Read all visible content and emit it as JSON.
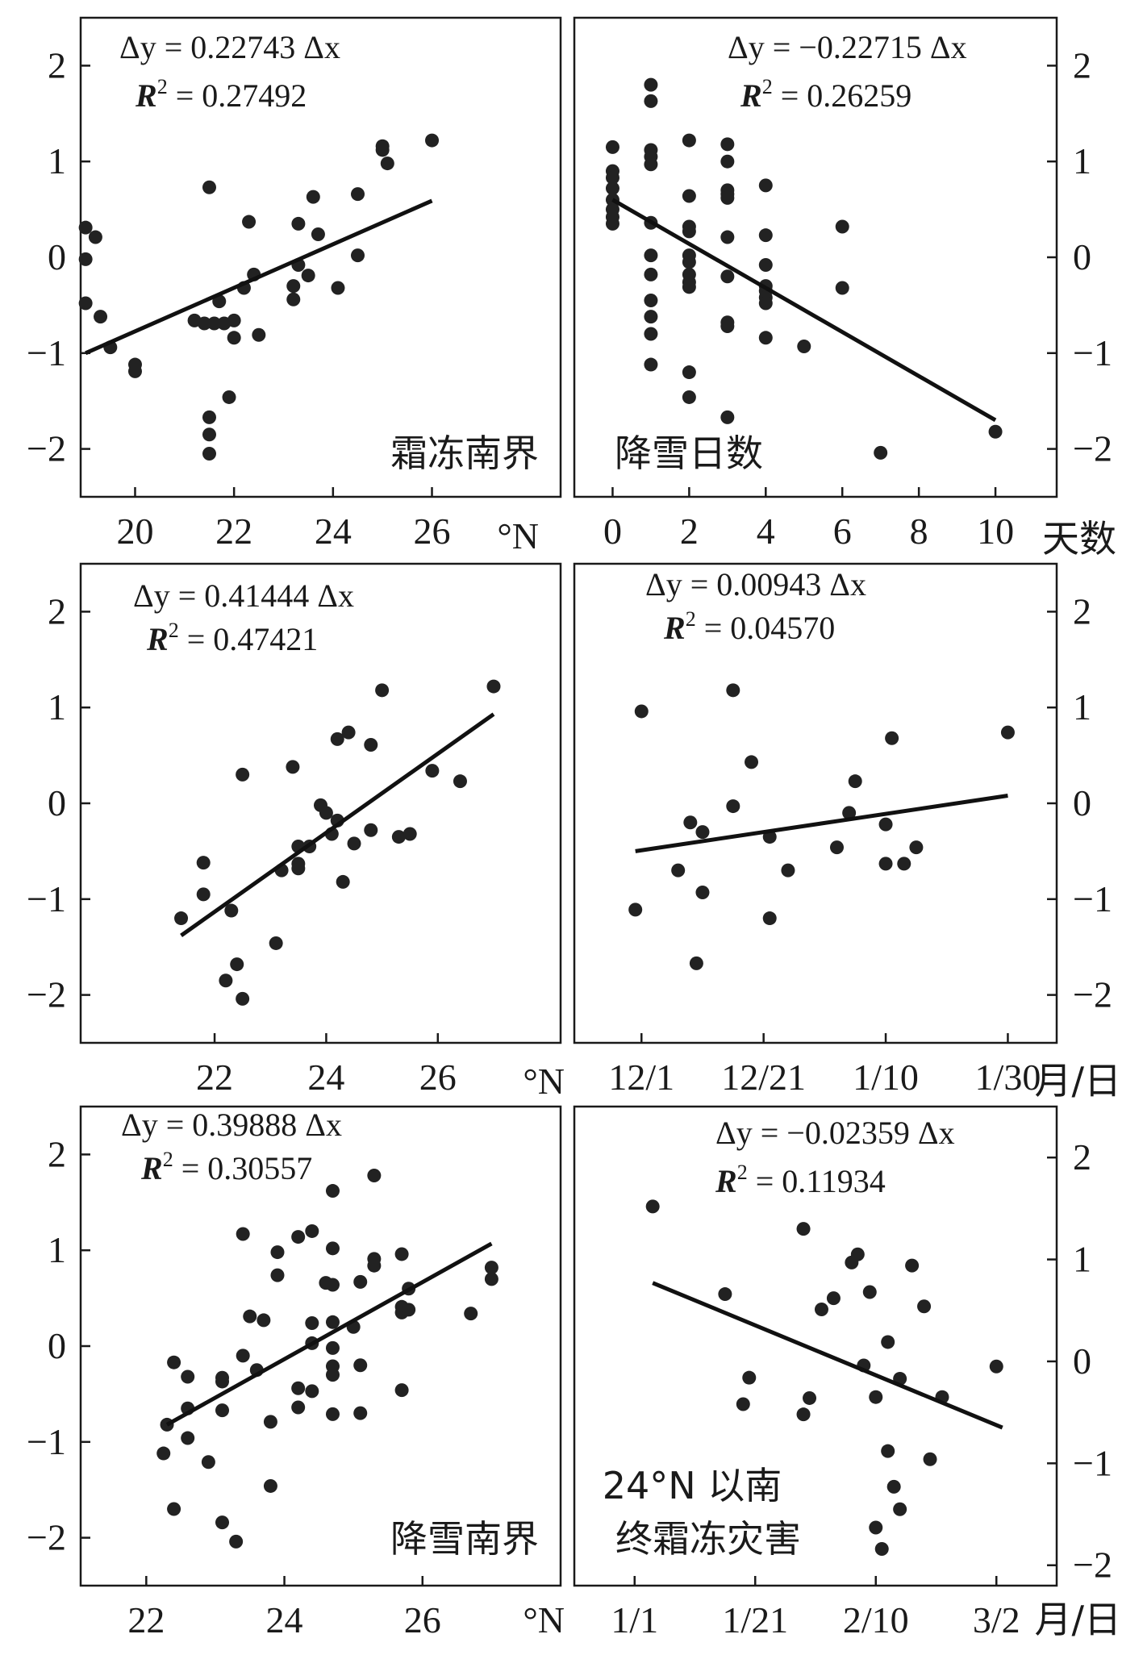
{
  "figure_labels": {
    "unit_lat": "°N",
    "unit_days": "天数",
    "unit_date": "月/日"
  },
  "chart_data": [
    {
      "type": "scatter",
      "id": "p1",
      "title": "霜冻南界",
      "xlabel": "°N",
      "xlim": [
        18.9,
        28.6
      ],
      "ylim": [
        -2.5,
        2.5
      ],
      "xticks": [
        20,
        22,
        24,
        26
      ],
      "yticks": [
        -2,
        -1,
        0,
        1,
        2
      ],
      "ytick_side": "left",
      "equation": "Δy = 0.22743 Δx",
      "r2_label": "R",
      "r2_value": "= 0.27492",
      "fit": {
        "x": [
          19.0,
          26.0
        ],
        "y": [
          -1.0,
          0.59
        ]
      },
      "points": [
        [
          19.0,
          0.31
        ],
        [
          19.0,
          -0.02
        ],
        [
          19.0,
          -0.48
        ],
        [
          19.2,
          0.21
        ],
        [
          19.3,
          -0.62
        ],
        [
          19.5,
          -0.94
        ],
        [
          20.0,
          -1.12
        ],
        [
          20.0,
          -1.19
        ],
        [
          21.2,
          -0.66
        ],
        [
          21.4,
          -0.69
        ],
        [
          21.5,
          0.73
        ],
        [
          21.5,
          -1.67
        ],
        [
          21.5,
          -1.85
        ],
        [
          21.5,
          -2.05
        ],
        [
          21.6,
          -0.69
        ],
        [
          21.7,
          -0.46
        ],
        [
          21.8,
          -0.69
        ],
        [
          22.0,
          -0.66
        ],
        [
          22.0,
          -0.84
        ],
        [
          21.9,
          -1.46
        ],
        [
          22.2,
          -0.32
        ],
        [
          22.3,
          0.37
        ],
        [
          22.4,
          -0.18
        ],
        [
          22.5,
          -0.81
        ],
        [
          23.2,
          -0.3
        ],
        [
          23.2,
          -0.44
        ],
        [
          23.3,
          0.35
        ],
        [
          23.3,
          -0.08
        ],
        [
          23.5,
          -0.19
        ],
        [
          23.6,
          0.63
        ],
        [
          23.7,
          0.24
        ],
        [
          24.1,
          -0.32
        ],
        [
          24.5,
          0.66
        ],
        [
          24.5,
          0.02
        ],
        [
          25.0,
          1.16
        ],
        [
          25.0,
          1.12
        ],
        [
          25.1,
          0.98
        ],
        [
          26.0,
          1.22
        ]
      ]
    },
    {
      "type": "scatter",
      "id": "p2",
      "title": "降雪日数",
      "xlabel": "天数",
      "xlim": [
        -1.0,
        11.6
      ],
      "ylim": [
        -2.5,
        2.5
      ],
      "xticks": [
        0,
        2,
        4,
        6,
        8,
        10
      ],
      "yticks": [
        -2,
        -1,
        0,
        1,
        2
      ],
      "ytick_side": "right",
      "equation": "Δy = −0.22715 Δx",
      "r2_label": "R",
      "r2_value": "= 0.26259",
      "fit": {
        "x": [
          0,
          10
        ],
        "y": [
          0.6,
          -1.7
        ]
      },
      "points": [
        [
          0,
          1.15
        ],
        [
          0,
          0.9
        ],
        [
          0,
          0.83
        ],
        [
          0,
          0.72
        ],
        [
          0,
          0.6
        ],
        [
          0,
          0.5
        ],
        [
          0,
          0.42
        ],
        [
          0,
          0.35
        ],
        [
          1,
          1.8
        ],
        [
          1,
          1.63
        ],
        [
          1,
          1.12
        ],
        [
          1,
          1.05
        ],
        [
          1,
          0.97
        ],
        [
          1,
          0.36
        ],
        [
          1,
          0.02
        ],
        [
          1,
          -0.18
        ],
        [
          1,
          -0.45
        ],
        [
          1,
          -0.62
        ],
        [
          1,
          -0.8
        ],
        [
          1,
          -1.12
        ],
        [
          2,
          1.22
        ],
        [
          2,
          0.64
        ],
        [
          2,
          0.32
        ],
        [
          2,
          0.27
        ],
        [
          2,
          0.02
        ],
        [
          2,
          -0.05
        ],
        [
          2,
          -0.18
        ],
        [
          2,
          -0.26
        ],
        [
          2,
          -0.31
        ],
        [
          2,
          -1.2
        ],
        [
          2,
          -1.46
        ],
        [
          3,
          1.18
        ],
        [
          3,
          1.0
        ],
        [
          3,
          0.7
        ],
        [
          3,
          0.66
        ],
        [
          3,
          0.62
        ],
        [
          3,
          0.21
        ],
        [
          3,
          -0.2
        ],
        [
          3,
          -0.68
        ],
        [
          3,
          -0.72
        ],
        [
          3,
          -1.67
        ],
        [
          4,
          0.75
        ],
        [
          4,
          0.23
        ],
        [
          4,
          -0.08
        ],
        [
          4,
          -0.3
        ],
        [
          4,
          -0.35
        ],
        [
          4,
          -0.42
        ],
        [
          4,
          -0.48
        ],
        [
          4,
          -0.84
        ],
        [
          5,
          -0.93
        ],
        [
          6,
          0.32
        ],
        [
          6,
          -0.32
        ],
        [
          7,
          -2.04
        ],
        [
          10,
          -1.82
        ]
      ]
    },
    {
      "type": "scatter",
      "id": "p3",
      "xlabel": "°N",
      "xlim": [
        19.6,
        28.2
      ],
      "ylim": [
        -2.5,
        2.5
      ],
      "xticks": [
        22,
        24,
        26
      ],
      "yticks": [
        -2,
        -1,
        0,
        1,
        2
      ],
      "ytick_side": "left",
      "equation": "Δy = 0.41444 Δx",
      "r2_label": "R",
      "r2_value": "= 0.47421",
      "fit": {
        "x": [
          21.4,
          27.0
        ],
        "y": [
          -1.38,
          0.93
        ]
      },
      "points": [
        [
          21.4,
          -1.2
        ],
        [
          21.8,
          -0.62
        ],
        [
          21.8,
          -0.95
        ],
        [
          22.2,
          -1.85
        ],
        [
          22.3,
          -1.12
        ],
        [
          22.4,
          -1.68
        ],
        [
          22.5,
          0.3
        ],
        [
          22.5,
          -2.04
        ],
        [
          23.1,
          -1.46
        ],
        [
          23.2,
          -0.7
        ],
        [
          23.4,
          0.38
        ],
        [
          23.5,
          -0.45
        ],
        [
          23.5,
          -0.63
        ],
        [
          23.5,
          -0.68
        ],
        [
          23.7,
          -0.45
        ],
        [
          23.9,
          -0.02
        ],
        [
          24.0,
          -0.1
        ],
        [
          24.1,
          -0.32
        ],
        [
          24.2,
          0.67
        ],
        [
          24.2,
          -0.18
        ],
        [
          24.3,
          -0.82
        ],
        [
          24.4,
          0.74
        ],
        [
          24.5,
          -0.42
        ],
        [
          24.8,
          0.61
        ],
        [
          24.8,
          -0.28
        ],
        [
          25.0,
          1.18
        ],
        [
          25.3,
          -0.35
        ],
        [
          25.5,
          -0.32
        ],
        [
          25.9,
          0.34
        ],
        [
          26.4,
          0.23
        ],
        [
          27.0,
          1.22
        ]
      ]
    },
    {
      "type": "scatter",
      "id": "p4",
      "xlabel": "月/日",
      "xlim": [
        -11.0,
        68.0
      ],
      "ylim": [
        -2.5,
        2.5
      ],
      "xticks": [
        0,
        20,
        40,
        60
      ],
      "xticklabels": [
        "12/1",
        "12/21",
        "1/10",
        "1/30"
      ],
      "yticks": [
        -2,
        -1,
        0,
        1,
        2
      ],
      "ytick_side": "right",
      "equation": "Δy = 0.00943 Δx",
      "r2_label": "R",
      "r2_value": "= 0.04570",
      "fit": {
        "x": [
          -1,
          60
        ],
        "y": [
          -0.5,
          0.08
        ]
      },
      "points": [
        [
          -1,
          -1.11
        ],
        [
          0,
          0.96
        ],
        [
          6,
          -0.7
        ],
        [
          8,
          -0.2
        ],
        [
          9,
          -1.67
        ],
        [
          10,
          -0.93
        ],
        [
          10,
          -0.3
        ],
        [
          15,
          1.18
        ],
        [
          15,
          -0.03
        ],
        [
          18,
          0.43
        ],
        [
          21,
          -0.35
        ],
        [
          21,
          -1.2
        ],
        [
          24,
          -0.7
        ],
        [
          32,
          -0.46
        ],
        [
          34,
          -0.1
        ],
        [
          35,
          0.23
        ],
        [
          40,
          -0.22
        ],
        [
          40,
          -0.63
        ],
        [
          41,
          0.68
        ],
        [
          43,
          -0.63
        ],
        [
          45,
          -0.46
        ],
        [
          60,
          0.74
        ]
      ]
    },
    {
      "type": "scatter",
      "id": "p5",
      "title": "降雪南界",
      "xlabel": "°N",
      "xlim": [
        21.05,
        28.0
      ],
      "ylim": [
        -2.5,
        2.5
      ],
      "xticks": [
        22,
        24,
        26
      ],
      "yticks": [
        -2,
        -1,
        0,
        1,
        2
      ],
      "ytick_side": "left",
      "equation": "Δy = 0.39888 Δx",
      "r2_label": "R",
      "r2_value": "= 0.30557",
      "fit": {
        "x": [
          22.3,
          27.0
        ],
        "y": [
          -0.82,
          1.07
        ]
      },
      "points": [
        [
          22.25,
          -1.12
        ],
        [
          22.3,
          -0.82
        ],
        [
          22.4,
          -0.17
        ],
        [
          22.4,
          -1.7
        ],
        [
          22.6,
          -0.32
        ],
        [
          22.6,
          -0.65
        ],
        [
          22.6,
          -0.96
        ],
        [
          22.9,
          -1.21
        ],
        [
          23.1,
          -0.33
        ],
        [
          23.1,
          -0.37
        ],
        [
          23.1,
          -0.67
        ],
        [
          23.1,
          -1.84
        ],
        [
          23.3,
          -2.04
        ],
        [
          23.4,
          -0.1
        ],
        [
          23.4,
          1.17
        ],
        [
          23.5,
          0.31
        ],
        [
          23.6,
          -0.25
        ],
        [
          23.7,
          0.27
        ],
        [
          23.8,
          -0.79
        ],
        [
          23.8,
          -1.46
        ],
        [
          23.9,
          0.98
        ],
        [
          23.9,
          0.74
        ],
        [
          24.2,
          1.14
        ],
        [
          24.2,
          -0.44
        ],
        [
          24.2,
          -0.64
        ],
        [
          24.4,
          1.2
        ],
        [
          24.4,
          0.24
        ],
        [
          24.4,
          0.03
        ],
        [
          24.4,
          -0.47
        ],
        [
          24.6,
          0.66
        ],
        [
          24.7,
          1.62
        ],
        [
          24.7,
          1.02
        ],
        [
          24.7,
          0.64
        ],
        [
          24.7,
          0.25
        ],
        [
          24.7,
          -0.02
        ],
        [
          24.7,
          -0.21
        ],
        [
          24.7,
          -0.3
        ],
        [
          24.7,
          -0.71
        ],
        [
          25.0,
          0.2
        ],
        [
          25.1,
          0.67
        ],
        [
          25.1,
          -0.2
        ],
        [
          25.1,
          -0.7
        ],
        [
          25.3,
          1.78
        ],
        [
          25.3,
          0.91
        ],
        [
          25.3,
          0.84
        ],
        [
          25.7,
          0.96
        ],
        [
          25.7,
          0.41
        ],
        [
          25.7,
          0.35
        ],
        [
          25.7,
          -0.46
        ],
        [
          25.8,
          0.6
        ],
        [
          25.8,
          0.38
        ],
        [
          26.7,
          0.34
        ],
        [
          27.0,
          0.82
        ],
        [
          27.0,
          0.7
        ]
      ]
    },
    {
      "type": "scatter",
      "id": "p6",
      "title": "24°N 以南",
      "title2": "终霜冻灾害",
      "xlabel": "月/日",
      "xlim": [
        -10.0,
        70.0
      ],
      "ylim": [
        -2.2,
        2.5
      ],
      "xticks": [
        0,
        20,
        40,
        60
      ],
      "xticklabels": [
        "1/1",
        "1/21",
        "2/10",
        "3/2"
      ],
      "yticks": [
        -2,
        -1,
        0,
        1,
        2
      ],
      "ytick_side": "right",
      "equation": "Δy = −0.02359 Δx",
      "r2_label": "R",
      "r2_value": "= 0.11934",
      "fit": {
        "x": [
          3,
          61
        ],
        "y": [
          0.77,
          -0.65
        ]
      },
      "points": [
        [
          3,
          1.52
        ],
        [
          15,
          0.66
        ],
        [
          18,
          -0.42
        ],
        [
          19,
          -0.16
        ],
        [
          28,
          1.3
        ],
        [
          28,
          -0.52
        ],
        [
          29,
          -0.36
        ],
        [
          31,
          0.51
        ],
        [
          33,
          0.62
        ],
        [
          36,
          0.97
        ],
        [
          37,
          1.05
        ],
        [
          38,
          -0.04
        ],
        [
          39,
          0.68
        ],
        [
          40,
          -1.63
        ],
        [
          40,
          -0.35
        ],
        [
          41,
          -1.84
        ],
        [
          42,
          0.19
        ],
        [
          42,
          -0.88
        ],
        [
          43,
          -1.23
        ],
        [
          44,
          -0.17
        ],
        [
          44,
          -1.45
        ],
        [
          46,
          0.94
        ],
        [
          48,
          0.54
        ],
        [
          49,
          -0.96
        ],
        [
          51,
          -0.35
        ],
        [
          60,
          -0.05
        ]
      ]
    }
  ]
}
